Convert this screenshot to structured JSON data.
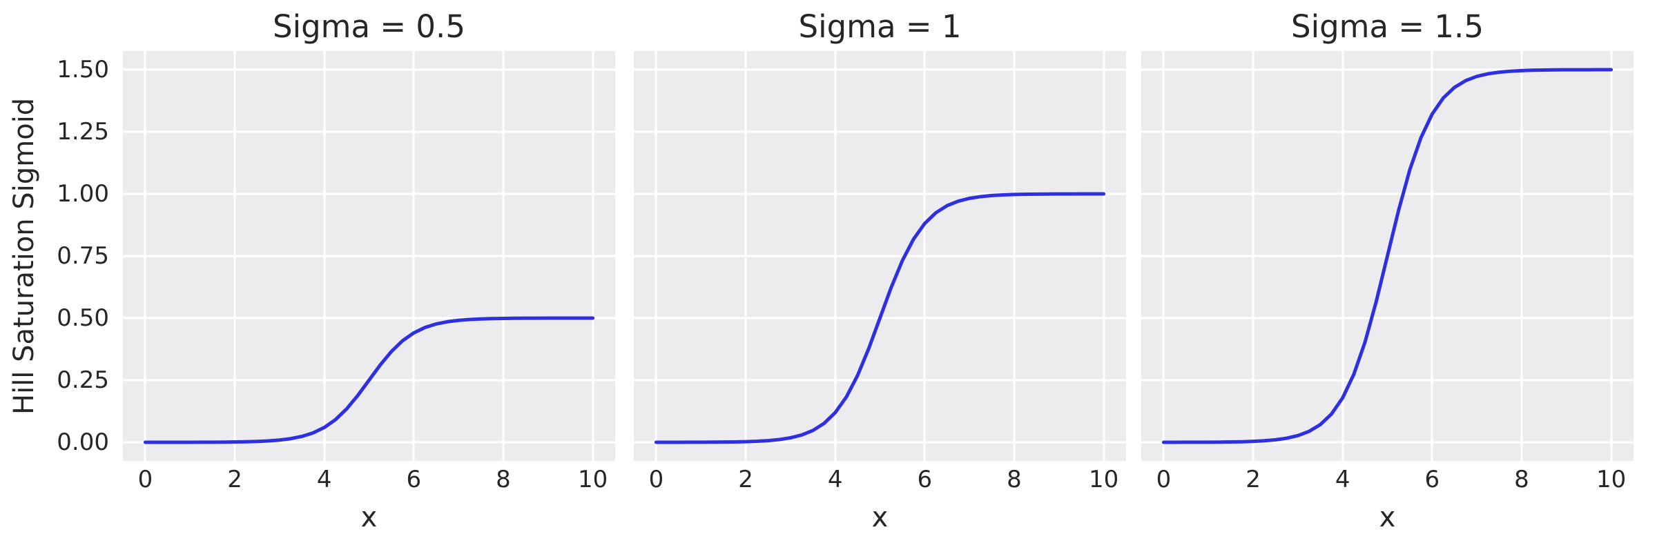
{
  "figure": {
    "ylabel": "Hill Saturation Sigmoid",
    "colors": {
      "line": "#2f2fe2",
      "axes_background": "#ececee",
      "gridline": "#ffffff",
      "text": "#262626",
      "figure_background": "#ffffff"
    }
  },
  "axes": {
    "y_tick_labels": [
      "0.00",
      "0.25",
      "0.50",
      "0.75",
      "1.00",
      "1.25",
      "1.50"
    ],
    "y_tick_values": [
      0,
      0.25,
      0.5,
      0.75,
      1.0,
      1.25,
      1.5
    ],
    "x_tick_labels": [
      "0",
      "2",
      "4",
      "6",
      "8",
      "10"
    ],
    "x_tick_values": [
      0,
      2,
      4,
      6,
      8,
      10
    ]
  },
  "chart_data": [
    {
      "type": "line",
      "title": "Sigma = 0.5",
      "xlabel": "x",
      "ylabel": "Hill Saturation Sigmoid",
      "xlim": [
        -0.5,
        10.5
      ],
      "ylim": [
        -0.075,
        1.575
      ],
      "grid": true,
      "legend": false,
      "series": [
        {
          "color": "#2f2fe2",
          "x": [
            0,
            0.25,
            0.5,
            0.75,
            1,
            1.25,
            1.5,
            1.75,
            2,
            2.25,
            2.5,
            2.75,
            3,
            3.25,
            3.5,
            3.75,
            4,
            4.25,
            4.5,
            4.75,
            5,
            5.25,
            5.5,
            5.75,
            6,
            6.25,
            6.5,
            6.75,
            7,
            7.25,
            7.5,
            7.75,
            8,
            8.25,
            8.5,
            8.75,
            9,
            9.25,
            9.5,
            9.75,
            10
          ],
          "y": [
            2e-05,
            4e-05,
            6e-05,
            0.0001,
            0.00017,
            0.00028,
            0.00046,
            0.00075,
            0.00123,
            0.00203,
            0.00335,
            0.0055,
            0.009,
            0.01466,
            0.02372,
            0.03793,
            0.0596,
            0.09121,
            0.13447,
            0.18877,
            0.25,
            0.31123,
            0.36553,
            0.40879,
            0.4404,
            0.46207,
            0.47628,
            0.48534,
            0.491,
            0.4945,
            0.49666,
            0.49795,
            0.49877,
            0.49925,
            0.49954,
            0.49972,
            0.49983,
            0.4999,
            0.49994,
            0.49996,
            0.49998
          ]
        }
      ]
    },
    {
      "type": "line",
      "title": "Sigma = 1",
      "xlabel": "x",
      "ylabel": "Hill Saturation Sigmoid",
      "xlim": [
        -0.5,
        10.5
      ],
      "ylim": [
        -0.075,
        1.575
      ],
      "grid": true,
      "legend": false,
      "series": [
        {
          "color": "#2f2fe2",
          "x": [
            0,
            0.25,
            0.5,
            0.75,
            1,
            1.25,
            1.5,
            1.75,
            2,
            2.25,
            2.5,
            2.75,
            3,
            3.25,
            3.5,
            3.75,
            4,
            4.25,
            4.5,
            4.75,
            5,
            5.25,
            5.5,
            5.75,
            6,
            6.25,
            6.5,
            6.75,
            7,
            7.25,
            7.5,
            7.75,
            8,
            8.25,
            8.5,
            8.75,
            9,
            9.25,
            9.5,
            9.75,
            10
          ],
          "y": [
            5e-05,
            7e-05,
            0.00012,
            0.0002,
            0.00034,
            0.00055,
            0.00091,
            0.0015,
            0.00247,
            0.00407,
            0.00669,
            0.01099,
            0.01799,
            0.02931,
            0.04743,
            0.07586,
            0.1192,
            0.18243,
            0.26894,
            0.37754,
            0.5,
            0.62246,
            0.73106,
            0.81757,
            0.8808,
            0.92414,
            0.95257,
            0.97069,
            0.98201,
            0.98901,
            0.99331,
            0.9959,
            0.99753,
            0.99849,
            0.99909,
            0.99945,
            0.99966,
            0.9998,
            0.99988,
            0.99993,
            0.99995
          ]
        }
      ]
    },
    {
      "type": "line",
      "title": "Sigma = 1.5",
      "xlabel": "x",
      "ylabel": "Hill Saturation Sigmoid",
      "xlim": [
        -0.5,
        10.5
      ],
      "ylim": [
        -0.075,
        1.575
      ],
      "grid": true,
      "legend": false,
      "series": [
        {
          "color": "#2f2fe2",
          "x": [
            0,
            0.25,
            0.5,
            0.75,
            1,
            1.25,
            1.5,
            1.75,
            2,
            2.25,
            2.5,
            2.75,
            3,
            3.25,
            3.5,
            3.75,
            4,
            4.25,
            4.5,
            4.75,
            5,
            5.25,
            5.5,
            5.75,
            6,
            6.25,
            6.5,
            6.75,
            7,
            7.25,
            7.5,
            7.75,
            8,
            8.25,
            8.5,
            8.75,
            9,
            9.25,
            9.5,
            9.75,
            10
          ],
          "y": [
            7e-05,
            0.00011,
            0.00019,
            0.0003,
            0.00051,
            0.00082,
            0.00136,
            0.00225,
            0.0037,
            0.0061,
            0.01004,
            0.01648,
            0.02699,
            0.04396,
            0.07114,
            0.11379,
            0.1788,
            0.27364,
            0.40341,
            0.56631,
            0.75,
            0.93369,
            1.09659,
            1.22636,
            1.3212,
            1.38621,
            1.42886,
            1.45604,
            1.47301,
            1.48352,
            1.48996,
            1.49385,
            1.4963,
            1.49774,
            1.49863,
            1.49917,
            1.49949,
            1.49969,
            1.49981,
            1.49989,
            1.49993
          ]
        }
      ]
    }
  ]
}
